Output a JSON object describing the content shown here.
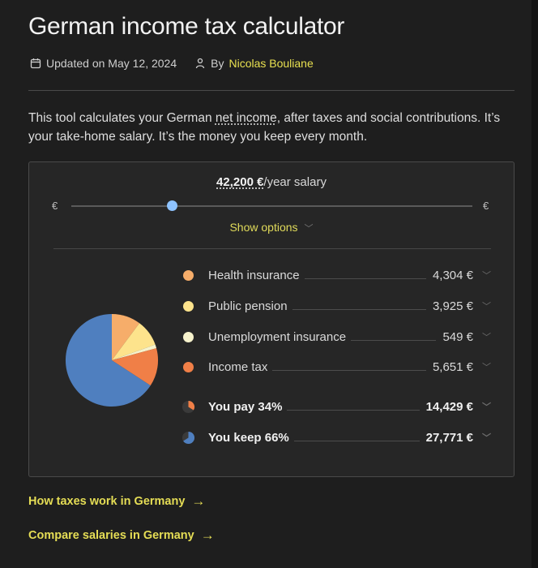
{
  "header": {
    "title": "German income tax calculator",
    "updated": "Updated on May 12, 2024",
    "by": "By",
    "author": "Nicolas Bouliane"
  },
  "intro": {
    "part1": "This tool calculates your German ",
    "link": "net income",
    "part2": ", after taxes and social contributions. It’s your take-home salary. It’s the money you keep every month."
  },
  "calculator": {
    "salary_value": "42,200 €",
    "salary_suffix": "/year salary",
    "currency_left": "€",
    "currency_right": "€",
    "slider_fraction": 0.25,
    "options_label": "Show options"
  },
  "breakdown": [
    {
      "label": "Health insurance",
      "value": "4,304 €",
      "color": "#f6ad6a"
    },
    {
      "label": "Public pension",
      "value": "3,925 €",
      "color": "#fde38c"
    },
    {
      "label": "Unemployment insurance",
      "value": "549 €",
      "color": "#f6f2cc"
    },
    {
      "label": "Income tax",
      "value": "5,651 €",
      "color": "#f07f47"
    }
  ],
  "totals": {
    "pay_label": "You pay 34%",
    "pay_value": "14,429 €",
    "keep_label": "You keep 66%",
    "keep_value": "27,771 €",
    "keep_color": "#4f7fbf"
  },
  "pie_values": [
    4304,
    3925,
    549,
    5651,
    27771
  ],
  "links": {
    "how_taxes": "How taxes work in Germany",
    "compare": "Compare salaries in Germany"
  }
}
